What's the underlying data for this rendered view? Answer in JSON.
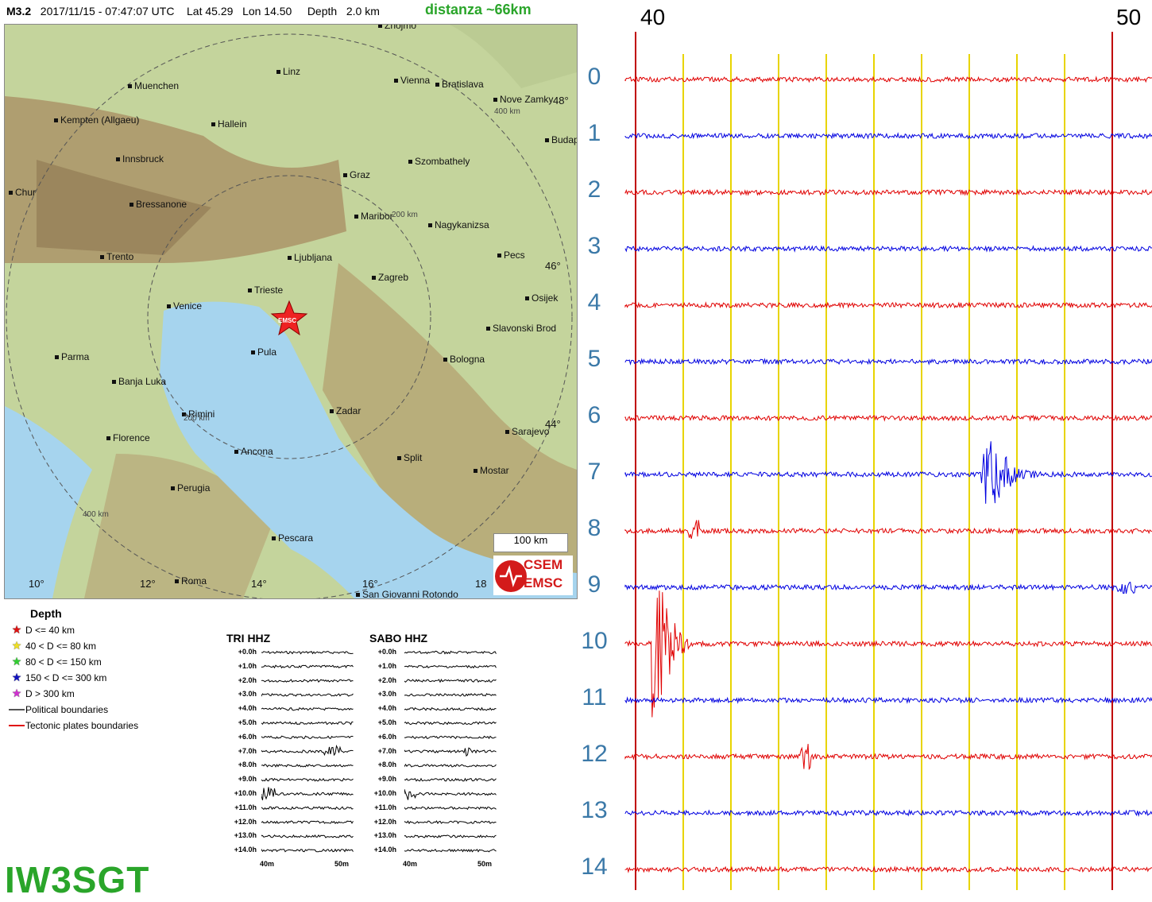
{
  "header": {
    "magnitude": "M3.2",
    "datetime": "2017/11/15 - 07:47:07 UTC",
    "lat": "Lat 45.29",
    "lon": "Lon 14.50",
    "depth_label": "Depth",
    "depth_value": "2.0 km",
    "distance": "distanza ~66km"
  },
  "map": {
    "cities": [
      "Muenchen",
      "Linz",
      "Vienna",
      "Bratislava",
      "Nove Zamky",
      "Kempten (Allgaeu)",
      "Hallein",
      "Budape",
      "Innsbruck",
      "Szombathely",
      "Graz",
      "Chur",
      "Bressanone",
      "Maribor",
      "Nagykanizsa",
      "Trento",
      "Pecs",
      "Ljubljana",
      "Zagreb",
      "Trieste",
      "Osijek",
      "Venice",
      "Slavonski Brod",
      "Pula",
      "Parma",
      "Banja Luka",
      "Bologna",
      "Zadar",
      "Rimini",
      "Florence",
      "Sarajevo",
      "Ancona",
      "Split",
      "Mostar",
      "Perugia",
      "Pescara",
      "Roma",
      "San Giovanni Rotondo",
      "Znojmo"
    ],
    "lat_labels": [
      "48°",
      "46°",
      "44°"
    ],
    "lon_labels": [
      "10°",
      "12°",
      "14°",
      "16°",
      "18"
    ],
    "ring_labels": [
      "400 km",
      "200 km",
      "200 km",
      "400 km"
    ],
    "event_marker": "EMSC",
    "scale": "100 km",
    "logo_top": "CSEM",
    "logo_bottom": "EMSC"
  },
  "legend": {
    "title": "Depth",
    "items": [
      {
        "label": "D <= 40 km",
        "color": "#e01010",
        "symbol": "★"
      },
      {
        "label": "40 < D <= 80 km",
        "color": "#f0e020",
        "symbol": "★"
      },
      {
        "label": "80 < D <= 150 km",
        "color": "#30d030",
        "symbol": "★"
      },
      {
        "label": "150 < D <= 300 km",
        "color": "#1010c0",
        "symbol": "★"
      },
      {
        "label": "D > 300 km",
        "color": "#d030d0",
        "symbol": "★"
      },
      {
        "label": "Political boundaries",
        "color": "#555555",
        "symbol": "line"
      },
      {
        "label": "Tectonic plates boundaries",
        "color": "#e01010",
        "symbol": "line"
      }
    ]
  },
  "mini_panels": [
    {
      "title": "TRI HHZ",
      "axis_start": "40m",
      "axis_end": "50m"
    },
    {
      "title": "SABO HHZ",
      "axis_start": "40m",
      "axis_end": "50m"
    }
  ],
  "mini_row_labels": [
    "+0.0h",
    "+1.0h",
    "+2.0h",
    "+3.0h",
    "+4.0h",
    "+5.0h",
    "+6.0h",
    "+7.0h",
    "+8.0h",
    "+9.0h",
    "+10.0h",
    "+11.0h",
    "+12.0h",
    "+13.0h",
    "+14.0h"
  ],
  "callsign": "IW3SGT",
  "seismogram": {
    "minute_start": "40",
    "minute_end": "50",
    "row_labels": [
      "0",
      "1",
      "2",
      "3",
      "4",
      "5",
      "6",
      "7",
      "8",
      "9",
      "10",
      "11",
      "12",
      "13",
      "14"
    ],
    "row_colors": [
      "#e00000",
      "#0000e0"
    ],
    "gridline_color": "#e8d400",
    "marker_color": "#c00000"
  }
}
